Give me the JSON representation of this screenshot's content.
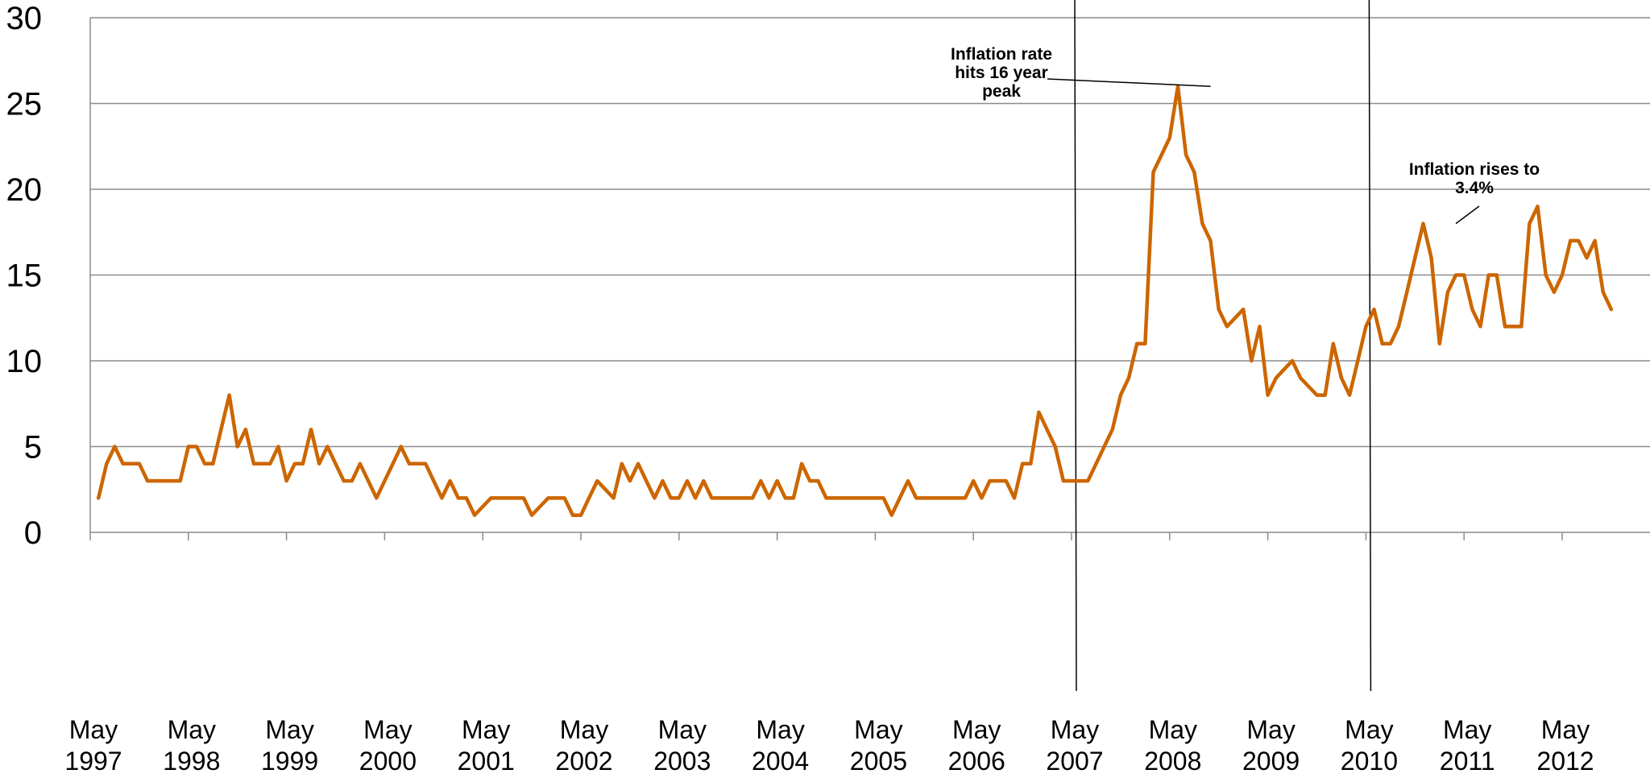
{
  "chart_data": {
    "type": "line",
    "title": "",
    "xlabel": "",
    "ylabel": "",
    "ylim": [
      0,
      30
    ],
    "yticks": [
      0,
      5,
      10,
      15,
      20,
      25,
      30
    ],
    "grid": true,
    "x_tick_labels": [
      [
        "May",
        "1997"
      ],
      [
        "May",
        "1998"
      ],
      [
        "May",
        "1999"
      ],
      [
        "May",
        "2000"
      ],
      [
        "May",
        "2001"
      ],
      [
        "May",
        "2002"
      ],
      [
        "May",
        "2003"
      ],
      [
        "May",
        "2004"
      ],
      [
        "May",
        "2005"
      ],
      [
        "May",
        "2006"
      ],
      [
        "May",
        "2007"
      ],
      [
        "May",
        "2008"
      ],
      [
        "May",
        "2009"
      ],
      [
        "May",
        "2010"
      ],
      [
        "May",
        "2011"
      ],
      [
        "May",
        "2012"
      ]
    ],
    "x_start": "1997-06",
    "x_step_months": 1,
    "series": [
      {
        "color": "#cc6600",
        "values": [
          2,
          4,
          5,
          4,
          4,
          4,
          3,
          3,
          3,
          3,
          3,
          5,
          5,
          4,
          4,
          6,
          8,
          5,
          6,
          4,
          4,
          4,
          5,
          3,
          4,
          4,
          6,
          4,
          5,
          4,
          3,
          3,
          4,
          3,
          2,
          3,
          4,
          5,
          4,
          4,
          4,
          3,
          2,
          3,
          2,
          2,
          1,
          1.5,
          2,
          2,
          2,
          2,
          2,
          1,
          1.5,
          2,
          2,
          2,
          1,
          1,
          2,
          3,
          2.5,
          2,
          4,
          3,
          4,
          3,
          2,
          3,
          2,
          2,
          3,
          2,
          3,
          2,
          2,
          2,
          2,
          2,
          2,
          3,
          2,
          3,
          2,
          2,
          4,
          3,
          3,
          2,
          2,
          2,
          2,
          2,
          2,
          2,
          2,
          1,
          2,
          3,
          2,
          2,
          2,
          2,
          2,
          2,
          2,
          3,
          2,
          3,
          3,
          3,
          2,
          4,
          4,
          7,
          6,
          5,
          3,
          3,
          3,
          3,
          4,
          5,
          6,
          8,
          9,
          11,
          11,
          21,
          22,
          23,
          26,
          22,
          21,
          18,
          17,
          13,
          12,
          12.5,
          13,
          10,
          12,
          8,
          9,
          9.5,
          10,
          9,
          8.5,
          8,
          8,
          11,
          9,
          8,
          10,
          12,
          13,
          11,
          11,
          12,
          14,
          16,
          18,
          16,
          11,
          14,
          15,
          15,
          13,
          12,
          15,
          15,
          12,
          12,
          12,
          18,
          19,
          15,
          14,
          15,
          17,
          17,
          16,
          17,
          14,
          13
        ]
      }
    ],
    "vertical_markers": [
      "May 2007",
      "May 2010"
    ],
    "annotations": [
      {
        "lines": [
          "Inflation rate",
          "hits 16 year",
          "peak"
        ],
        "target_month": "2008-10",
        "target_value": 26
      },
      {
        "lines": [
          "Inflation rises to",
          "3.4%"
        ],
        "target_month": "2011-04",
        "target_value": 18
      }
    ]
  }
}
